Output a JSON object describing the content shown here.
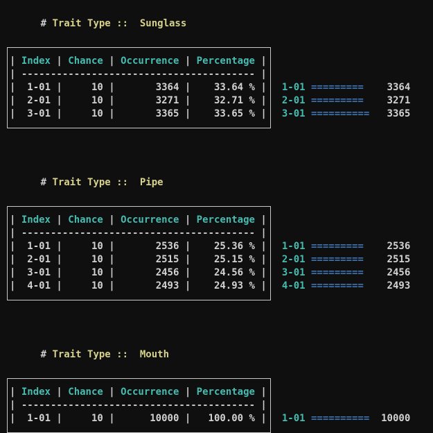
{
  "colors": {
    "background": "#0f0f0f",
    "foreground": "#cfcfcf",
    "title_yellow": "#d6d28c",
    "header_teal": "#46bcb1",
    "bar_blue": "#3e74b4"
  },
  "table": {
    "pipe": "|",
    "separator": "----------------------------------------",
    "columns": [
      "Index",
      "Chance",
      "Occurrence",
      "Percentage"
    ]
  },
  "sections": [
    {
      "hash": "#",
      "label": "Trait Type ::",
      "name": "Sunglass",
      "rows": [
        {
          "index": "1-01",
          "chance": "10",
          "occurrence": "3364",
          "percentage": "33.64 %",
          "bar": "=========",
          "count": "3364"
        },
        {
          "index": "2-01",
          "chance": "10",
          "occurrence": "3271",
          "percentage": "32.71 %",
          "bar": "=========",
          "count": "3271"
        },
        {
          "index": "3-01",
          "chance": "10",
          "occurrence": "3365",
          "percentage": "33.65 %",
          "bar": "==========",
          "count": "3365"
        }
      ]
    },
    {
      "hash": "#",
      "label": "Trait Type ::",
      "name": "Pipe",
      "rows": [
        {
          "index": "1-01",
          "chance": "10",
          "occurrence": "2536",
          "percentage": "25.36 %",
          "bar": "=========",
          "count": "2536"
        },
        {
          "index": "2-01",
          "chance": "10",
          "occurrence": "2515",
          "percentage": "25.15 %",
          "bar": "=========",
          "count": "2515"
        },
        {
          "index": "3-01",
          "chance": "10",
          "occurrence": "2456",
          "percentage": "24.56 %",
          "bar": "=========",
          "count": "2456"
        },
        {
          "index": "4-01",
          "chance": "10",
          "occurrence": "2493",
          "percentage": "24.93 %",
          "bar": "=========",
          "count": "2493"
        }
      ]
    },
    {
      "hash": "#",
      "label": "Trait Type ::",
      "name": "Mouth",
      "rows": [
        {
          "index": "1-01",
          "chance": "10",
          "occurrence": "10000",
          "percentage": "100.00 %",
          "bar": "==========",
          "count": "10000"
        }
      ]
    }
  ],
  "chart_data": [
    {
      "type": "bar",
      "title": "Trait Type :: Sunglass",
      "categories": [
        "1-01",
        "2-01",
        "3-01"
      ],
      "values": [
        3364,
        3271,
        3365
      ],
      "xlabel": "Index",
      "ylabel": "Occurrence"
    },
    {
      "type": "bar",
      "title": "Trait Type :: Pipe",
      "categories": [
        "1-01",
        "2-01",
        "3-01",
        "4-01"
      ],
      "values": [
        2536,
        2515,
        2456,
        2493
      ],
      "xlabel": "Index",
      "ylabel": "Occurrence"
    },
    {
      "type": "bar",
      "title": "Trait Type :: Mouth",
      "categories": [
        "1-01"
      ],
      "values": [
        10000
      ],
      "xlabel": "Index",
      "ylabel": "Occurrence"
    }
  ]
}
